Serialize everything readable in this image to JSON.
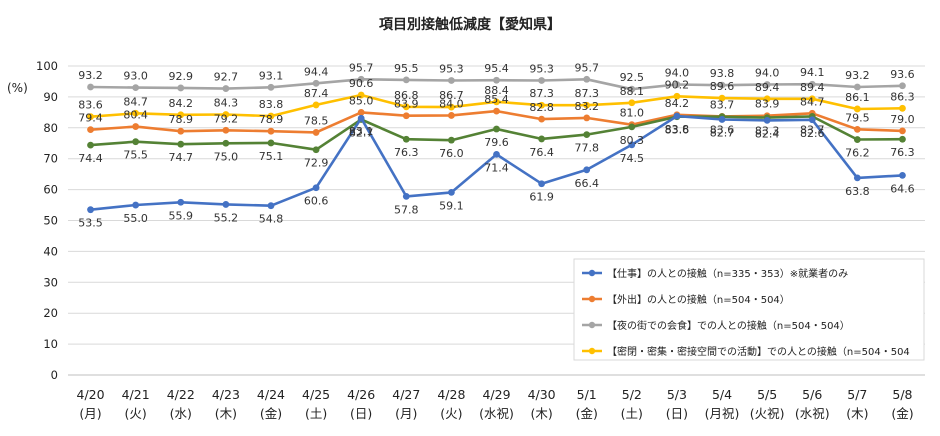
{
  "chart_data": {
    "type": "line",
    "title": "項目別接触低減度【愛知県】",
    "ylabel": "(%)",
    "ylim": [
      0,
      100
    ],
    "yticks": [
      0,
      10,
      20,
      30,
      40,
      50,
      60,
      70,
      80,
      90,
      100
    ],
    "grid": true,
    "legend_position": "lower-right",
    "categories": [
      [
        "4/20",
        "(月)"
      ],
      [
        "4/21",
        "(火)"
      ],
      [
        "4/22",
        "(水)"
      ],
      [
        "4/23",
        "(木)"
      ],
      [
        "4/24",
        "(金)"
      ],
      [
        "4/25",
        "(土)"
      ],
      [
        "4/26",
        "(日)"
      ],
      [
        "4/27",
        "(月)"
      ],
      [
        "4/28",
        "(火)"
      ],
      [
        "4/29",
        "(水祝)"
      ],
      [
        "4/30",
        "(木)"
      ],
      [
        "5/1",
        "(金)"
      ],
      [
        "5/2",
        "(土)"
      ],
      [
        "5/3",
        "(日)"
      ],
      [
        "5/4",
        "(月祝)"
      ],
      [
        "5/5",
        "(火祝)"
      ],
      [
        "5/6",
        "(水祝)"
      ],
      [
        "5/7",
        "(木)"
      ],
      [
        "5/8",
        "(金)"
      ]
    ],
    "series": [
      {
        "name": "【仕事】の人との接触（n=335・353）※就業者のみ",
        "color": "#4472C4",
        "label_pos": "below",
        "values": [
          53.5,
          55.0,
          55.9,
          55.2,
          54.8,
          60.6,
          83.1,
          57.8,
          59.1,
          71.4,
          61.9,
          66.4,
          74.5,
          83.8,
          82.7,
          82.4,
          82.6,
          63.8,
          64.6
        ]
      },
      {
        "name": "【外出】の人との接触（n=504・504）",
        "color": "#ED7D31",
        "label_pos": "above",
        "values": [
          79.4,
          80.4,
          78.9,
          79.2,
          78.9,
          78.5,
          85.0,
          83.9,
          84.0,
          85.4,
          82.8,
          83.2,
          81.0,
          84.2,
          83.7,
          83.9,
          84.7,
          79.5,
          79.0
        ]
      },
      {
        "name": "【夜の街での会食】での人との接触（n=504・504）",
        "color": "#A5A5A5",
        "label_pos": "above",
        "values": [
          93.2,
          93.0,
          92.9,
          92.7,
          93.1,
          94.4,
          95.7,
          95.5,
          95.3,
          95.4,
          95.3,
          95.7,
          92.5,
          94.0,
          93.8,
          94.0,
          94.1,
          93.2,
          93.6
        ]
      },
      {
        "name": "【密閉・密集・密接空間での活動】での人との接触（n=504・504",
        "color": "#FFC000",
        "label_pos": "above",
        "values": [
          83.6,
          84.7,
          84.2,
          84.3,
          83.8,
          87.4,
          90.6,
          86.8,
          86.7,
          88.4,
          87.3,
          87.3,
          88.1,
          90.2,
          89.6,
          89.4,
          89.4,
          86.1,
          86.3
        ]
      },
      {
        "name": "",
        "color": "#548235",
        "label_pos": "below",
        "values": [
          74.4,
          75.5,
          74.7,
          75.0,
          75.1,
          72.9,
          82.7,
          76.3,
          76.0,
          79.6,
          76.4,
          77.8,
          80.3,
          83.6,
          83.6,
          83.3,
          83.7,
          76.2,
          76.3
        ]
      }
    ]
  }
}
